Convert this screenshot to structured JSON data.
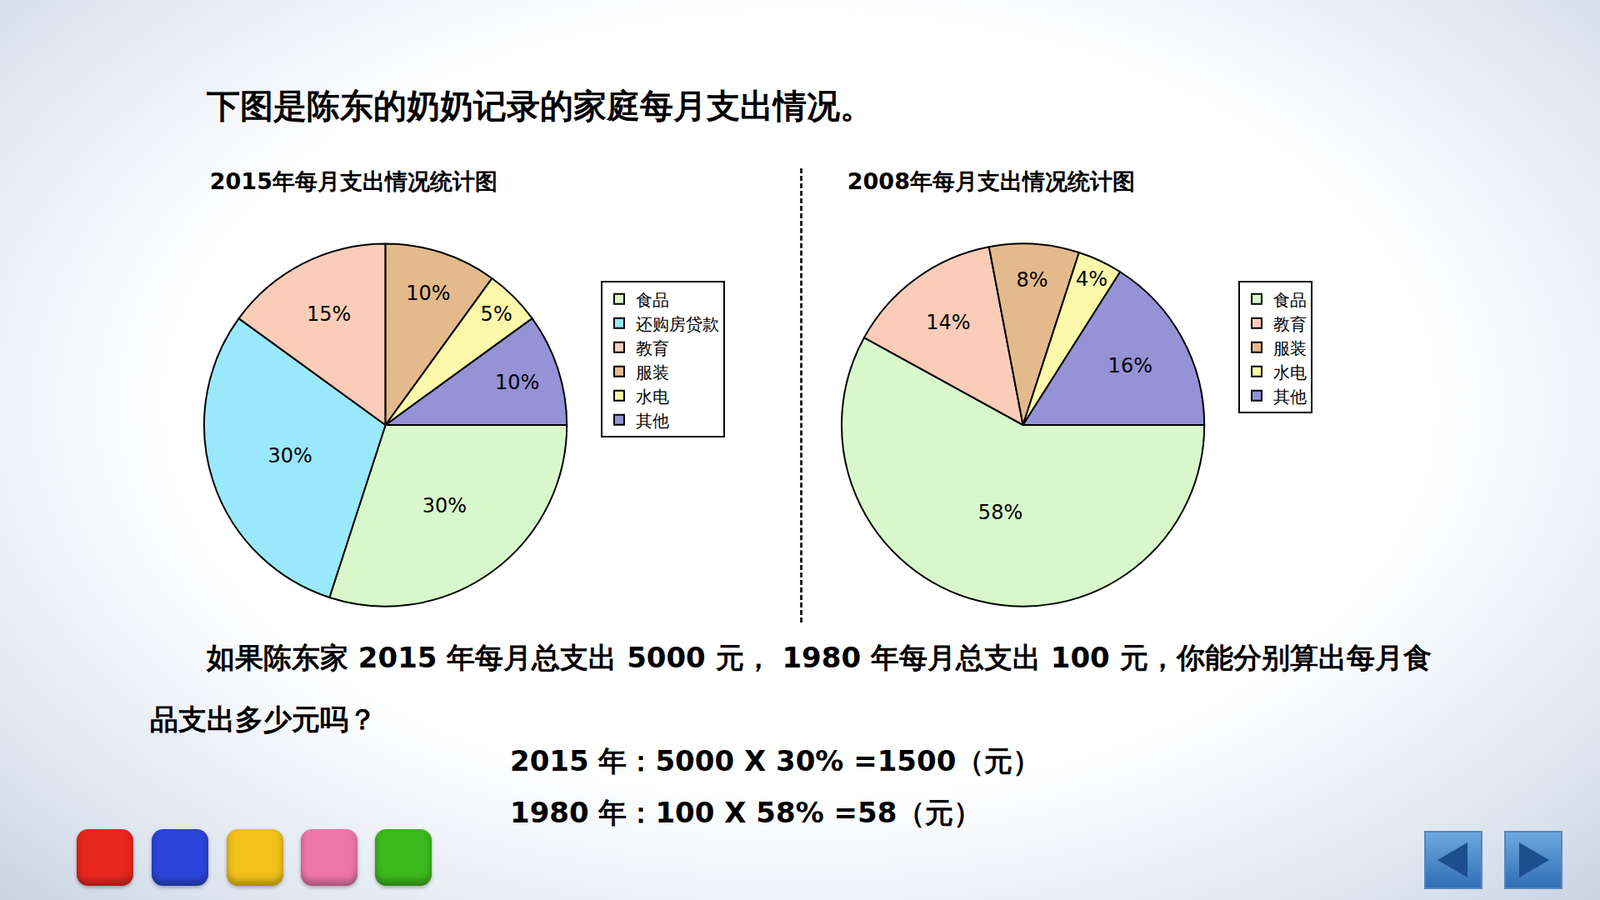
{
  "heading": "下图是陈东的奶奶记录的家庭每月支出情况。",
  "chart_data": [
    {
      "type": "pie",
      "title": "2015年每月支出情况统计图",
      "categories": [
        "食品",
        "还购房贷款",
        "教育",
        "服装",
        "水电",
        "其他"
      ],
      "values": [
        30,
        30,
        15,
        10,
        5,
        10
      ],
      "value_labels": [
        "30%",
        "30%",
        "15%",
        "10%",
        "5%",
        "10%"
      ],
      "colors": [
        "#d8f8cb",
        "#9ae8fc",
        "#fbcdb8",
        "#e3ba8c",
        "#fcf8aa",
        "#9692d6"
      ],
      "legend": "right",
      "data_labels": true
    },
    {
      "type": "pie",
      "title": "2008年每月支出情况统计图",
      "categories": [
        "食品",
        "教育",
        "服装",
        "水电",
        "其他"
      ],
      "values": [
        58,
        14,
        8,
        4,
        16
      ],
      "value_labels": [
        "58%",
        "14%",
        "8%",
        "4%",
        "16%"
      ],
      "colors": [
        "#d8f8cb",
        "#fbcdb8",
        "#e3ba8c",
        "#fcf8aa",
        "#9692d6"
      ],
      "legend": "right",
      "data_labels": true
    }
  ],
  "question": "如果陈东家 2015 年每月总支出 5000 元， 1980 年每月总支出 100 元，你能分别算出每月食品支出多少元吗？",
  "answers": [
    "2015 年：5000 X 30% =1500（元）",
    "1980 年：100 X 58% =58（元）"
  ]
}
